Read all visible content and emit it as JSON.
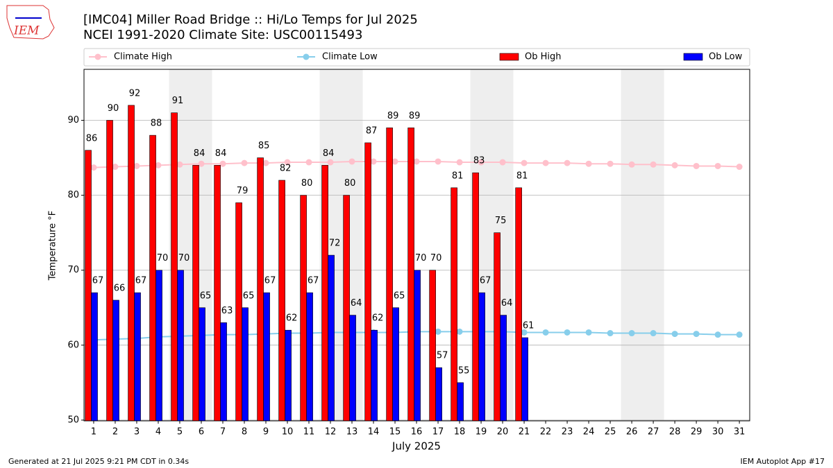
{
  "chart_data": {
    "type": "bar",
    "title": "[IMC04] Miller Road Bridge  :: Hi/Lo Temps for Jul 2025",
    "subtitle": "NCEI 1991-2020 Climate Site: USC00115493",
    "logo_text": "IEM",
    "x_label": "July 2025",
    "y_label": "Temperature °F",
    "footer_left": "Generated at 21 Jul 2025 9:21 PM CDT in 0.34s",
    "footer_right": "IEM Autoplot App #17",
    "x": [
      1,
      2,
      3,
      4,
      5,
      6,
      7,
      8,
      9,
      10,
      11,
      12,
      13,
      14,
      15,
      16,
      17,
      18,
      19,
      20,
      21,
      22,
      23,
      24,
      25,
      26,
      27,
      28,
      29,
      30,
      31
    ],
    "xlim": [
      0.55,
      31.48
    ],
    "xticks": [
      1,
      2,
      3,
      4,
      5,
      6,
      7,
      8,
      9,
      10,
      11,
      12,
      13,
      14,
      15,
      16,
      17,
      18,
      19,
      20,
      21,
      22,
      23,
      24,
      25,
      26,
      27,
      28,
      29,
      30,
      31
    ],
    "ylim": [
      49.9,
      96.8
    ],
    "yticks": [
      50,
      60,
      70,
      80,
      90
    ],
    "grid": true,
    "weekend_spans": [
      [
        4.5,
        6.5
      ],
      [
        11.5,
        13.5
      ],
      [
        18.5,
        20.5
      ],
      [
        25.5,
        27.5
      ]
    ],
    "weekend_color": "#eeeeee",
    "series": [
      {
        "name": "Climate High",
        "kind": "line",
        "color": "#ffc0cb",
        "values": [
          83.7,
          83.8,
          83.9,
          84.0,
          84.1,
          84.2,
          84.2,
          84.3,
          84.3,
          84.4,
          84.4,
          84.4,
          84.5,
          84.5,
          84.5,
          84.5,
          84.5,
          84.4,
          84.4,
          84.4,
          84.3,
          84.3,
          84.3,
          84.2,
          84.2,
          84.1,
          84.1,
          84.0,
          83.9,
          83.9,
          83.8
        ]
      },
      {
        "name": "Climate Low",
        "kind": "line",
        "color": "#87ceeb",
        "values": [
          60.7,
          60.8,
          60.9,
          61.1,
          61.2,
          61.3,
          61.4,
          61.4,
          61.5,
          61.6,
          61.6,
          61.7,
          61.7,
          61.7,
          61.7,
          61.8,
          61.8,
          61.8,
          61.8,
          61.8,
          61.7,
          61.7,
          61.7,
          61.7,
          61.6,
          61.6,
          61.6,
          61.5,
          61.5,
          61.4,
          61.4
        ]
      },
      {
        "name": "Ob High",
        "kind": "bar",
        "color": "#ff0000",
        "values": [
          86,
          90,
          92,
          88,
          91,
          84,
          84,
          79,
          85,
          82,
          80,
          84,
          80,
          87,
          89,
          89,
          70,
          81,
          83,
          75,
          81,
          null,
          null,
          null,
          null,
          null,
          null,
          null,
          null,
          null,
          null
        ]
      },
      {
        "name": "Ob Low",
        "kind": "bar",
        "color": "#0000ff",
        "values": [
          67,
          66,
          67,
          70,
          70,
          65,
          63,
          65,
          67,
          62,
          67,
          72,
          64,
          62,
          65,
          70,
          57,
          55,
          67,
          64,
          61,
          null,
          null,
          null,
          null,
          null,
          null,
          null,
          null,
          null,
          null
        ]
      }
    ]
  }
}
